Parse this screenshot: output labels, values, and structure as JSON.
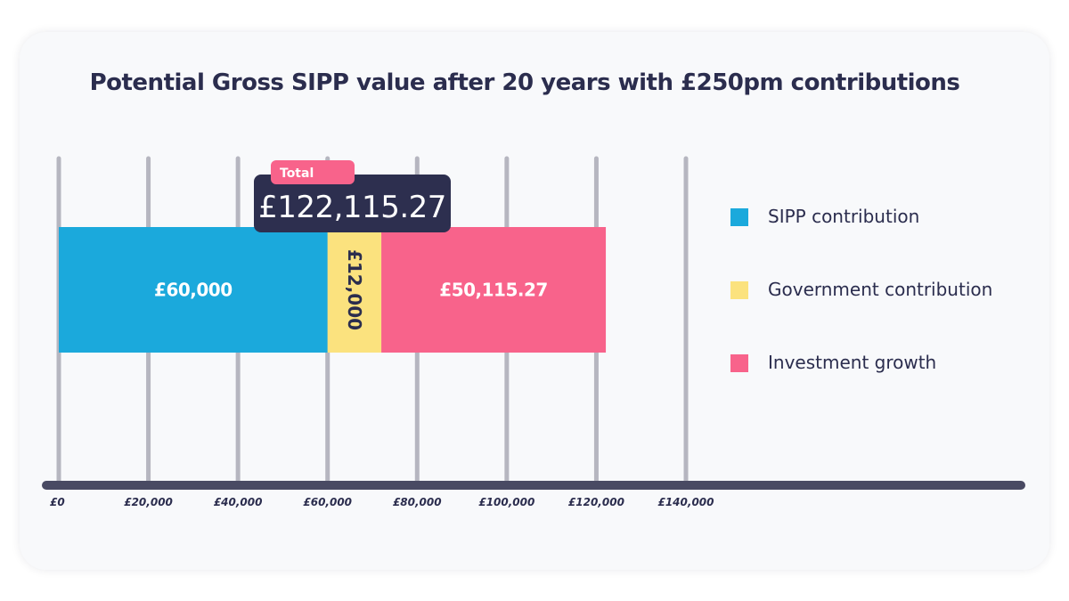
{
  "chart_data": {
    "type": "bar",
    "orientation": "horizontal-stacked",
    "title": "Potential Gross SIPP value after 20 years with £250pm contributions",
    "xlim": [
      0,
      140000
    ],
    "x_ticks": [
      0,
      20000,
      40000,
      60000,
      80000,
      100000,
      120000,
      140000
    ],
    "x_tick_labels": [
      "£0",
      "£20,000",
      "£40,000",
      "£60,000",
      "£80,000",
      "£100,000",
      "£120,000",
      "£140,000"
    ],
    "grid": true,
    "legend_position": "right",
    "series": [
      {
        "name": "SIPP contribution",
        "value": 60000,
        "label": "£60,000",
        "color": "#1ba9dc"
      },
      {
        "name": "Government contribution",
        "value": 12000,
        "label": "£12,000",
        "color": "#fbe27e"
      },
      {
        "name": "Investment growth",
        "value": 50115.27,
        "label": "£50,115.27",
        "color": "#f8638b"
      }
    ],
    "total": {
      "tag": "Total",
      "value": 122115.27,
      "label": "£122,115.27"
    }
  },
  "colors": {
    "text": "#2b2d4e",
    "grid": "#b6b6c0",
    "axis": "#494a63",
    "total_box": "#2d2f4f",
    "total_tag": "#f8638b"
  }
}
